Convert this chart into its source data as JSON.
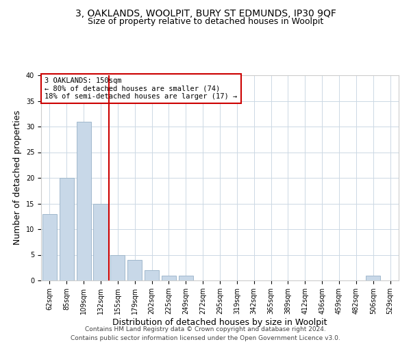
{
  "title": "3, OAKLANDS, WOOLPIT, BURY ST EDMUNDS, IP30 9QF",
  "subtitle": "Size of property relative to detached houses in Woolpit",
  "xlabel": "Distribution of detached houses by size in Woolpit",
  "ylabel": "Number of detached properties",
  "bar_labels": [
    "62sqm",
    "85sqm",
    "109sqm",
    "132sqm",
    "155sqm",
    "179sqm",
    "202sqm",
    "225sqm",
    "249sqm",
    "272sqm",
    "295sqm",
    "319sqm",
    "342sqm",
    "365sqm",
    "389sqm",
    "412sqm",
    "436sqm",
    "459sqm",
    "482sqm",
    "506sqm",
    "529sqm"
  ],
  "bar_values": [
    13,
    20,
    31,
    15,
    5,
    4,
    2,
    1,
    1,
    0,
    0,
    0,
    0,
    0,
    0,
    0,
    0,
    0,
    0,
    1,
    0
  ],
  "bar_color": "#c8d8e8",
  "bar_edge_color": "#a0b8cc",
  "vline_x": 3.5,
  "vline_color": "#cc0000",
  "annotation_text": "3 OAKLANDS: 150sqm\n← 80% of detached houses are smaller (74)\n18% of semi-detached houses are larger (17) →",
  "ylim": [
    0,
    40
  ],
  "yticks": [
    0,
    5,
    10,
    15,
    20,
    25,
    30,
    35,
    40
  ],
  "footer_text1": "Contains HM Land Registry data © Crown copyright and database right 2024.",
  "footer_text2": "Contains public sector information licensed under the Open Government Licence v3.0.",
  "title_fontsize": 10,
  "subtitle_fontsize": 9,
  "axis_label_fontsize": 9,
  "tick_fontsize": 7,
  "footer_fontsize": 6.5,
  "background_color": "#ffffff",
  "grid_color": "#ccd8e4"
}
